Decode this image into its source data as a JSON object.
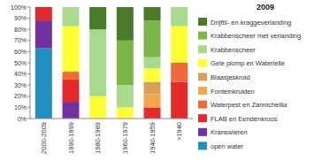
{
  "chart_data": {
    "type": "bar",
    "stacked": true,
    "title": "2009",
    "categories": [
      "2000-2009",
      "1990-1999",
      "1980-1989",
      "1960-1979",
      "1940-1959",
      ">1940"
    ],
    "ylim": [
      0,
      100
    ],
    "yticks": [
      {
        "value": 0,
        "label": "0%"
      },
      {
        "value": 10,
        "label": "10%"
      },
      {
        "value": 20,
        "label": "20%"
      },
      {
        "value": 30,
        "label": "30%"
      },
      {
        "value": 40,
        "label": "40%"
      },
      {
        "value": 50,
        "label": "50%"
      },
      {
        "value": 60,
        "label": "60%"
      },
      {
        "value": 70,
        "label": "70%"
      },
      {
        "value": 80,
        "label": "80%"
      },
      {
        "value": 90,
        "label": "90%"
      },
      {
        "value": 100,
        "label": "100%"
      }
    ],
    "grid": false,
    "legend": "right",
    "series": [
      {
        "name": "Drijftil- en kraggeverlanding",
        "color": "#4a7a2a",
        "values": [
          0,
          0,
          20,
          30,
          12,
          0
        ]
      },
      {
        "name": "Krabbenscheer met verlanding",
        "color": "#7ab648",
        "values": [
          0,
          0,
          0,
          40,
          33,
          0
        ]
      },
      {
        "name": "Krabbenscheer",
        "color": "#a9d98c",
        "values": [
          0,
          17,
          60,
          20,
          10,
          17
        ]
      },
      {
        "name": "Gele plomp en Waterlelie",
        "color": "#ffff33",
        "values": [
          0,
          41,
          20,
          10,
          12,
          33
        ]
      },
      {
        "name": "Blaasjeskruid",
        "color": "#d9a05b",
        "values": [
          0,
          0,
          0,
          0,
          11,
          0
        ]
      },
      {
        "name": "Fonteinkruiden",
        "color": "#f6a54a",
        "values": [
          0,
          0,
          0,
          0,
          12,
          0
        ]
      },
      {
        "name": "Waterpest en Zannichellia",
        "color": "#f06b3a",
        "values": [
          0,
          7,
          0,
          0,
          0,
          17
        ]
      },
      {
        "name": "FLAB en Eendenkroos",
        "color": "#e32b2b",
        "values": [
          12,
          20,
          0,
          0,
          10,
          33
        ]
      },
      {
        "name": "Kranswieren",
        "color": "#7030a0",
        "values": [
          25,
          15,
          0,
          0,
          0,
          0
        ]
      },
      {
        "name": "open water",
        "color": "#1f8fc0",
        "values": [
          63,
          0,
          0,
          0,
          0,
          0
        ]
      }
    ]
  }
}
